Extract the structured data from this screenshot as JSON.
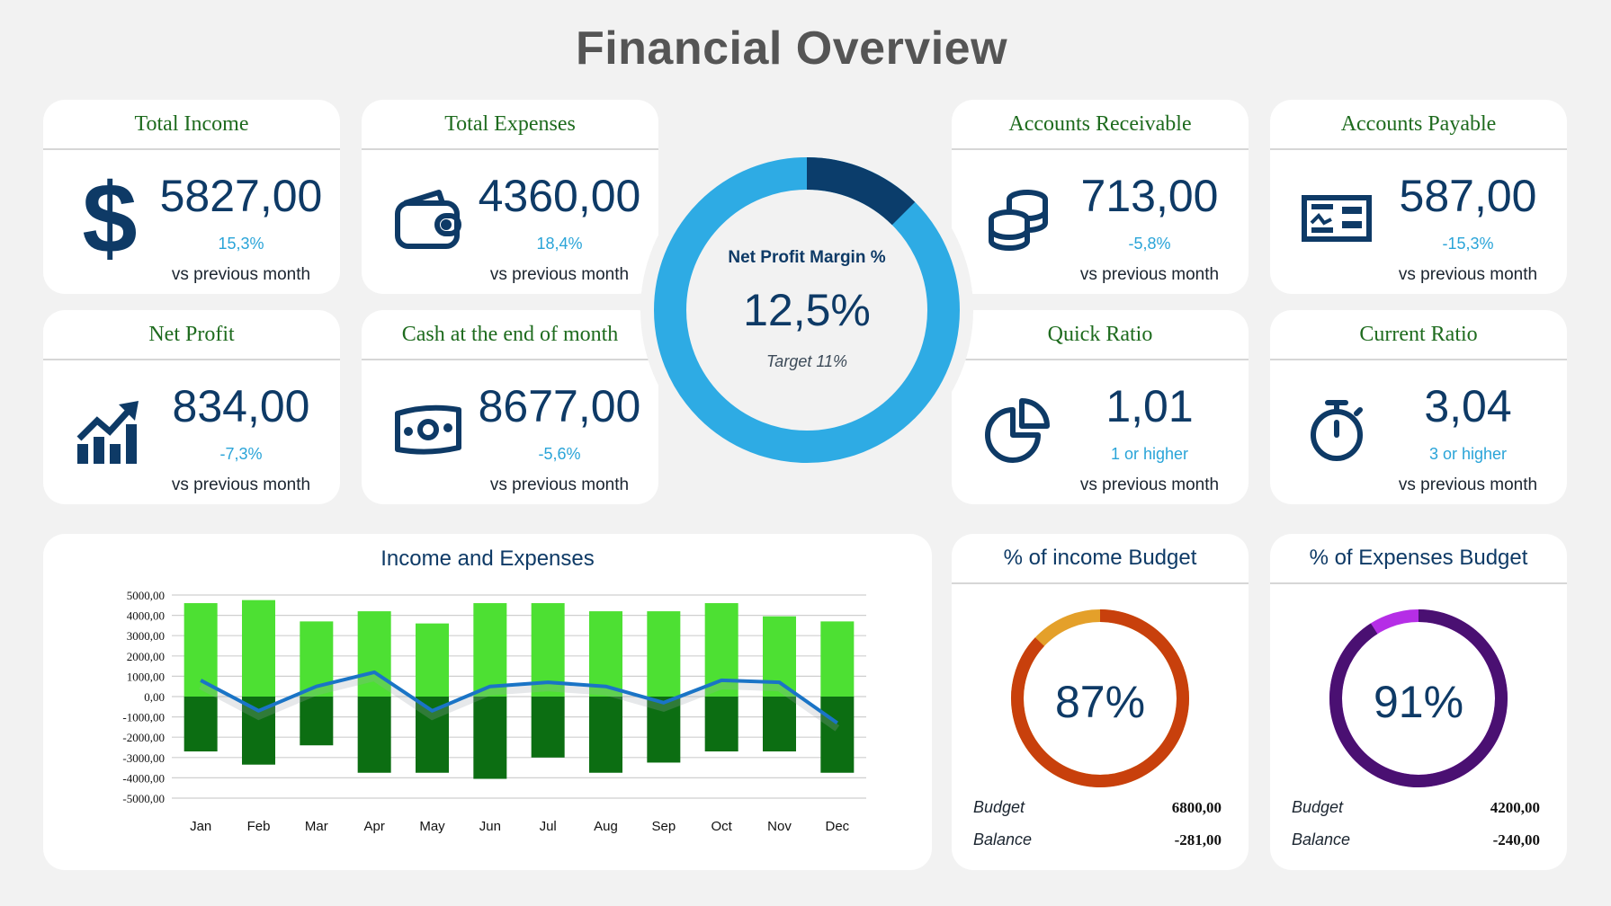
{
  "page": {
    "title": "Financial Overview"
  },
  "kpis": [
    {
      "title": "Total Income",
      "value": "5827,00",
      "change": "15,3%",
      "sub": "vs previous month",
      "icon": "dollar-icon"
    },
    {
      "title": "Total Expenses",
      "value": "4360,00",
      "change": "18,4%",
      "sub": "vs previous month",
      "icon": "wallet-icon"
    },
    {
      "title": "Accounts Receivable",
      "value": "713,00",
      "change": "-5,8%",
      "sub": "vs previous month",
      "icon": "coins-icon"
    },
    {
      "title": "Accounts Payable",
      "value": "587,00",
      "change": "-15,3%",
      "sub": "vs previous month",
      "icon": "check-icon"
    },
    {
      "title": "Net Profit",
      "value": "834,00",
      "change": "-7,3%",
      "sub": "vs previous month",
      "icon": "growth-chart-icon"
    },
    {
      "title": "Cash at the end of month",
      "value": "8677,00",
      "change": "-5,6%",
      "sub": "vs previous month",
      "icon": "cash-icon"
    },
    {
      "title": "Quick Ratio",
      "value": "1,01",
      "change": "1 or higher",
      "sub": "vs previous month",
      "icon": "pie-chart-icon"
    },
    {
      "title": "Current Ratio",
      "value": "3,04",
      "change": "3 or higher",
      "sub": "vs previous month",
      "icon": "stopwatch-icon"
    }
  ],
  "net_profit_margin": {
    "title": "Net Profit Margin %",
    "value": "12,5%",
    "target": "Target 11%",
    "fraction": 0.125,
    "colors": {
      "filled": "#0b3d6b",
      "remaining": "#2eabe4"
    }
  },
  "budgets": [
    {
      "title": "% of income Budget",
      "pct": "87%",
      "fraction": 0.87,
      "budget_label": "Budget",
      "budget_value": "6800,00",
      "balance_label": "Balance",
      "balance_value": "-281,00",
      "colors": {
        "main": "#c8400c",
        "rest": "#e4a02a"
      }
    },
    {
      "title": "% of Expenses Budget",
      "pct": "91%",
      "fraction": 0.91,
      "budget_label": "Budget",
      "budget_value": "4200,00",
      "balance_label": "Balance",
      "balance_value": "-240,00",
      "colors": {
        "main": "#4a1072",
        "rest": "#b52ee6"
      }
    }
  ],
  "chart_data": {
    "type": "bar",
    "title": "Income and Expenses",
    "categories": [
      "Jan",
      "Feb",
      "Mar",
      "Apr",
      "May",
      "Jun",
      "Jul",
      "Aug",
      "Sep",
      "Oct",
      "Nov",
      "Dec"
    ],
    "yticks": [
      "5000,00",
      "4000,00",
      "3000,00",
      "2000,00",
      "1000,00",
      "0,00",
      "-1000,00",
      "-2000,00",
      "-3000,00",
      "-4000,00",
      "-5000,00"
    ],
    "ylim": [
      -5000,
      5000
    ],
    "grid": true,
    "legend": "none",
    "series": [
      {
        "type": "bar",
        "values": [
          4600,
          4750,
          3700,
          4200,
          3600,
          4600,
          4600,
          4200,
          4200,
          4600,
          3950,
          3700
        ],
        "color": "#4de033"
      },
      {
        "type": "bar",
        "values": [
          -2700,
          -3350,
          -2400,
          -3750,
          -3750,
          -4050,
          -3000,
          -3750,
          -3250,
          -2700,
          -2700,
          -3750
        ],
        "color": "#0c6e12"
      },
      {
        "type": "line",
        "values": [
          800,
          -700,
          500,
          1200,
          -700,
          500,
          700,
          500,
          -300,
          800,
          700,
          -1300
        ],
        "color": "#1a74c6"
      }
    ]
  }
}
